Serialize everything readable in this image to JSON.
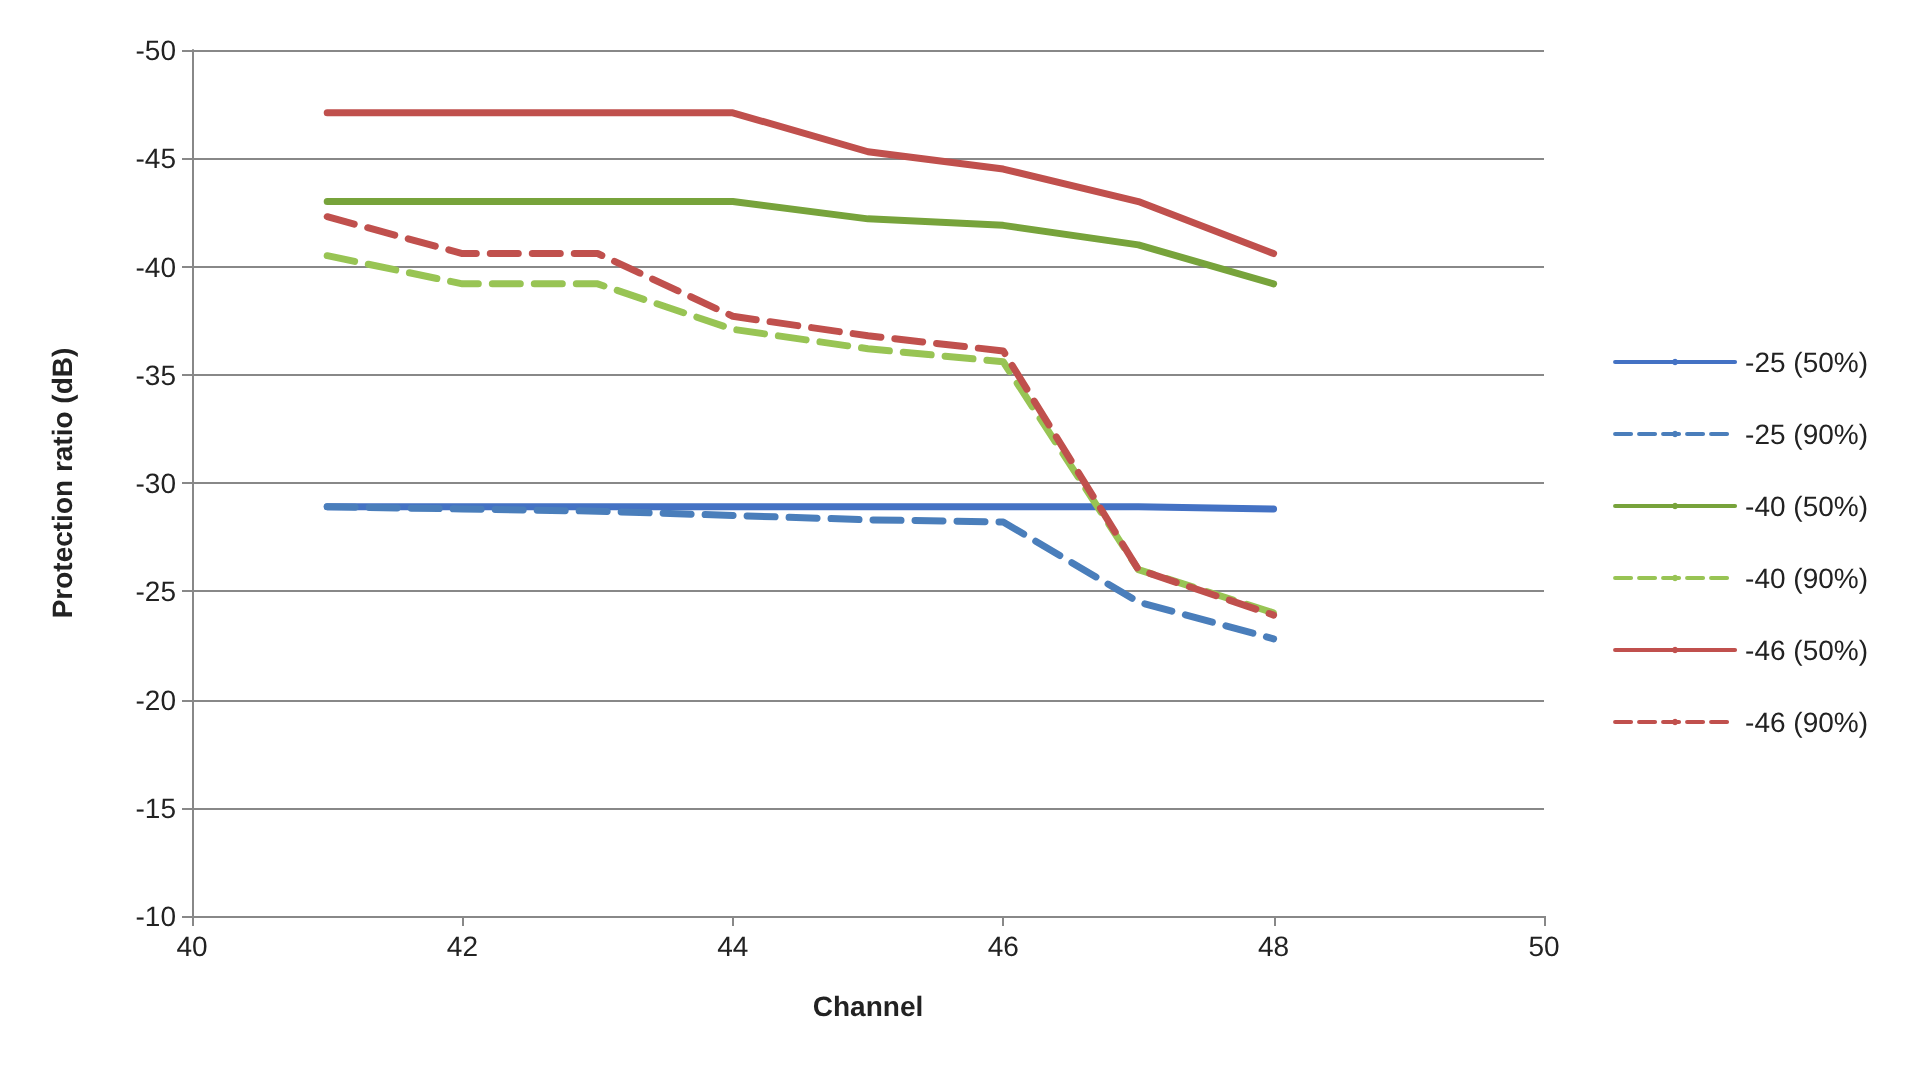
{
  "chart_data": {
    "type": "line",
    "xlabel": "Channel",
    "ylabel": "Protection ratio (dB)",
    "x": [
      41,
      42,
      43,
      44,
      45,
      46,
      47,
      48
    ],
    "xlim": [
      40,
      50
    ],
    "xticks": [
      40,
      42,
      44,
      46,
      48,
      50
    ],
    "ylim": [
      -10,
      -50
    ],
    "yticks": [
      -50,
      -45,
      -40,
      -35,
      -30,
      -25,
      -20,
      -15,
      -10
    ],
    "grid": "y",
    "legend": "right",
    "marker": "none",
    "series": [
      {
        "name": "-25 (50%)",
        "color": "#4472c4",
        "line_style": "solid",
        "values": [
          -28.9,
          -28.9,
          -28.9,
          -28.9,
          -28.9,
          -28.9,
          -28.9,
          -28.8
        ]
      },
      {
        "name": "-25 (90%)",
        "color": "#4a7ebb",
        "line_style": "dashed",
        "values": [
          -28.9,
          -28.8,
          -28.7,
          -28.5,
          -28.3,
          -28.2,
          -24.5,
          -22.8
        ]
      },
      {
        "name": "-40 (50%)",
        "color": "#77a33b",
        "line_style": "solid",
        "values": [
          -43.0,
          -43.0,
          -43.0,
          -43.0,
          -42.2,
          -41.9,
          -41.0,
          -39.2
        ]
      },
      {
        "name": "-40 (90%)",
        "color": "#98c454",
        "line_style": "dashed",
        "values": [
          -40.5,
          -39.2,
          -39.2,
          -37.1,
          -36.2,
          -35.6,
          -26.0,
          -24.0
        ]
      },
      {
        "name": "-46 (50%)",
        "color": "#c0504d",
        "line_style": "solid",
        "values": [
          -47.1,
          -47.1,
          -47.1,
          -47.1,
          -45.3,
          -44.5,
          -43.0,
          -40.6
        ]
      },
      {
        "name": "-46 (90%)",
        "color": "#c0504d",
        "line_style": "dashed",
        "values": [
          -42.3,
          -40.6,
          -40.6,
          -37.7,
          -36.8,
          -36.1,
          -26.0,
          -23.9
        ]
      }
    ]
  }
}
